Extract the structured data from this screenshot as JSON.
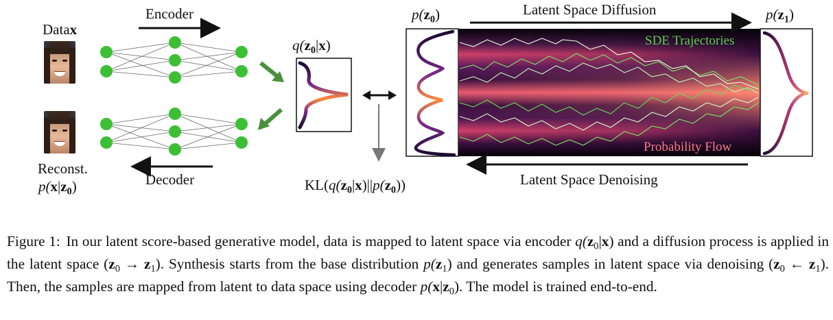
{
  "figure": {
    "data_label": "Data",
    "data_var": "x",
    "encoder_label": "Encoder",
    "decoder_label": "Decoder",
    "reconst_label": "Reconst.",
    "reconst_dist": {
      "p": "p(",
      "x": "x",
      "bar": "|",
      "z": "z",
      "sub": "0",
      "close": ")"
    },
    "posterior_label": {
      "q": "q(",
      "z": "z",
      "sub": "0",
      "bar": "|",
      "x": "x",
      "close": ")"
    },
    "kl_label": {
      "kl": "KL(",
      "q": "q(",
      "z": "z",
      "sub": "0",
      "bar": "|",
      "x": "x",
      "mid": ")||",
      "p": "p(",
      "z2": "z",
      "sub2": "0",
      "close": "))"
    },
    "prior_z0_label": {
      "p": "p(",
      "z": "z",
      "sub": "0",
      "close": ")"
    },
    "prior_z1_label": {
      "p": "p(",
      "z": "z",
      "sub": "1",
      "close": ")"
    },
    "diffusion_label": "Latent Space Diffusion",
    "denoising_label": "Latent Space Denoising",
    "sde_label": "SDE Trajectories",
    "flow_label": "Probability Flow",
    "colors": {
      "node_green": "#3dbf35",
      "arrow_green": "#4a8f3c",
      "sde_green": "#5ad14a",
      "flow_pink": "#ff7a8a"
    }
  },
  "caption": {
    "fig_num": "Figure 1:",
    "t1": "In our latent score-based generative model, data is mapped to latent space via encoder ",
    "m1": {
      "q": "q(",
      "z": "z",
      "sub": "0",
      "bar": "|",
      "x": "x",
      "close": ")"
    },
    "t2": " and a diffusion process is applied in the latent space (",
    "m2": {
      "z0": "z",
      "s0": "0",
      "arrow": " → ",
      "z1": "z",
      "s1": "1"
    },
    "t3": "). Synthesis starts from the base distribution ",
    "m3": {
      "p": "p(",
      "z": "z",
      "sub": "1",
      "close": ")"
    },
    "t4": " and generates samples in latent space via denoising (",
    "m4": {
      "z0": "z",
      "s0": "0",
      "arrow": " ← ",
      "z1": "z",
      "s1": "1"
    },
    "t5": "). Then, the samples are mapped from latent to data space using decoder ",
    "m5": {
      "p": "p(",
      "x": "x",
      "bar": "|",
      "z": "z",
      "sub": "0",
      "close": ")"
    },
    "t6": ". The model is trained end-to-end."
  }
}
